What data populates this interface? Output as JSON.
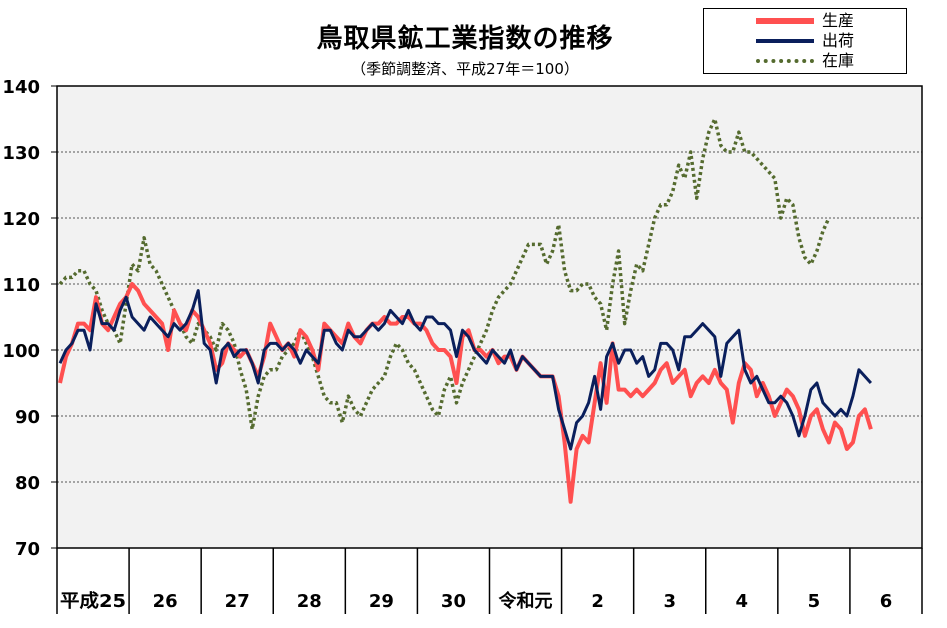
{
  "chart_data": {
    "type": "line",
    "title": "鳥取県鉱工業指数の推移",
    "subtitle": "（季節調整済、平成27年＝100）",
    "ylim": [
      70,
      140
    ],
    "yticks": [
      70,
      80,
      90,
      100,
      110,
      120,
      130,
      140
    ],
    "grid": true,
    "legend_position": "top-right",
    "year_labels": [
      "平成25",
      "26",
      "27",
      "28",
      "29",
      "30",
      "令和元",
      "2",
      "3",
      "4",
      "5",
      "6"
    ],
    "months_per_year": 12,
    "series": [
      {
        "name": "生産",
        "color": "#ff5050",
        "style": "solid",
        "values": [
          95,
          99,
          101,
          104,
          104,
          103,
          108,
          104,
          103,
          105,
          107,
          108,
          110,
          109,
          107,
          106,
          105,
          104,
          100,
          106,
          104,
          103,
          106,
          105,
          103,
          101,
          97,
          98,
          101,
          100,
          99,
          100,
          98,
          96,
          99,
          104,
          102,
          100,
          101,
          99,
          103,
          102,
          100,
          97,
          104,
          103,
          102,
          101,
          104,
          102,
          101,
          103,
          104,
          104,
          105,
          104,
          104,
          105,
          105,
          104,
          104,
          103,
          101,
          100,
          100,
          99,
          95,
          102,
          103,
          100,
          100,
          99,
          100,
          98,
          99,
          99,
          97,
          99,
          98,
          97,
          96,
          96,
          96,
          93,
          86,
          77,
          85,
          87,
          86,
          92,
          98,
          92,
          101,
          94,
          94,
          93,
          94,
          93,
          94,
          95,
          97,
          98,
          95,
          96,
          97,
          93,
          95,
          96,
          95,
          97,
          95,
          94,
          89,
          95,
          98,
          97,
          93,
          95,
          93,
          90,
          92,
          94,
          93,
          91,
          87,
          90,
          91,
          88,
          86,
          89,
          88,
          85,
          86,
          90,
          91,
          88
        ]
      },
      {
        "name": "出荷",
        "color": "#0a1f5c",
        "style": "solid",
        "values": [
          98,
          100,
          101,
          103,
          103,
          100,
          107,
          104,
          104,
          103,
          106,
          108,
          105,
          104,
          103,
          105,
          104,
          103,
          102,
          104,
          103,
          104,
          106,
          109,
          101,
          100,
          95,
          100,
          101,
          99,
          100,
          100,
          98,
          95,
          100,
          101,
          101,
          100,
          101,
          100,
          98,
          100,
          99,
          98,
          103,
          103,
          101,
          100,
          103,
          102,
          102,
          103,
          104,
          103,
          104,
          106,
          105,
          104,
          106,
          104,
          103,
          105,
          105,
          104,
          104,
          103,
          99,
          103,
          102,
          100,
          99,
          98,
          100,
          99,
          98,
          100,
          97,
          99,
          98,
          97,
          96,
          96,
          96,
          91,
          88,
          85,
          89,
          90,
          92,
          96,
          91,
          99,
          101,
          98,
          100,
          100,
          98,
          99,
          96,
          97,
          101,
          101,
          100,
          97,
          102,
          102,
          103,
          104,
          103,
          102,
          96,
          101,
          102,
          103,
          97,
          95,
          96,
          94,
          92,
          92,
          93,
          92,
          90,
          87,
          90,
          94,
          95,
          92,
          91,
          90,
          91,
          90,
          93,
          97,
          96,
          95
        ]
      },
      {
        "name": "在庫",
        "color": "#556b2f",
        "style": "dotted",
        "values": [
          110,
          111,
          111,
          112,
          112,
          110,
          109,
          106,
          104,
          103,
          101,
          107,
          113,
          112,
          117,
          113,
          112,
          110,
          108,
          106,
          104,
          102,
          101,
          104,
          103,
          102,
          100,
          104,
          103,
          101,
          97,
          94,
          88,
          93,
          96,
          97,
          97,
          99,
          100,
          101,
          103,
          101,
          99,
          96,
          93,
          92,
          92,
          89,
          93,
          91,
          90,
          92,
          94,
          95,
          96,
          99,
          101,
          100,
          98,
          97,
          95,
          93,
          91,
          90,
          94,
          96,
          92,
          95,
          97,
          99,
          101,
          103,
          106,
          108,
          109,
          110,
          112,
          114,
          116,
          116,
          116,
          113,
          115,
          119,
          112,
          109,
          109,
          110,
          110,
          108,
          107,
          103,
          110,
          115,
          104,
          109,
          113,
          112,
          116,
          120,
          122,
          122,
          124,
          128,
          126,
          130,
          123,
          129,
          133,
          135,
          131,
          130,
          130,
          133,
          130,
          130,
          129,
          128,
          127,
          126,
          120,
          123,
          122,
          117,
          114,
          113,
          115,
          118,
          120
        ]
      }
    ]
  }
}
